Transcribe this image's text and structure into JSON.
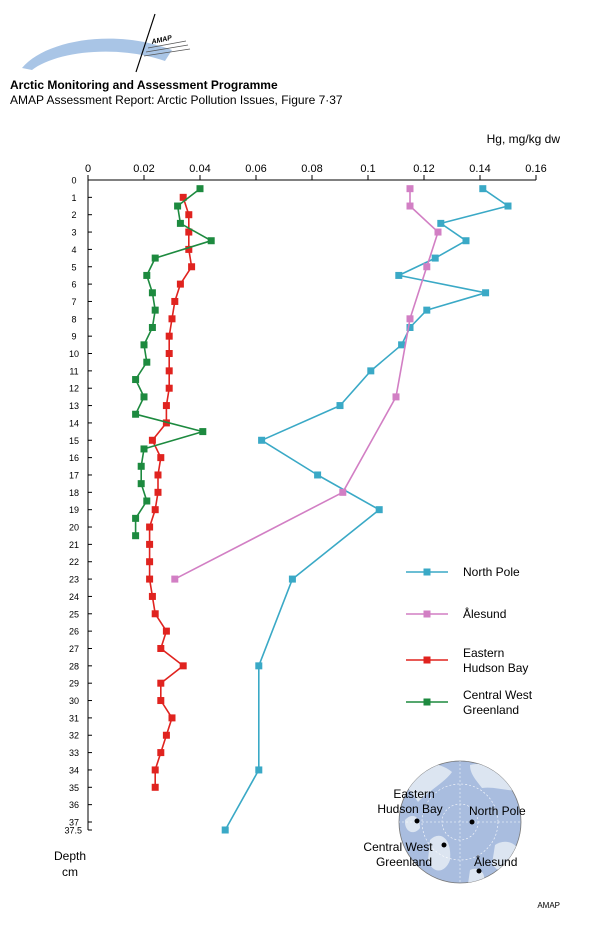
{
  "header": {
    "logo_text": "AMAP",
    "title": "Arctic Monitoring and Assessment Programme",
    "subtitle": "AMAP Assessment Report: Arctic Pollution Issues, Figure 7·37"
  },
  "footer": {
    "credit": "AMAP"
  },
  "colors": {
    "north_pole": "#3aa9c6",
    "alesund": "#d27fc4",
    "hudson_bay": "#e0231f",
    "greenland": "#1d8a3f",
    "map_water": "#a9bddf",
    "map_land": "#dce5f1"
  },
  "inset_map": {
    "labels": [
      "Eastern Hudson Bay",
      "North Pole",
      "Central West Greenland",
      "Ålesund"
    ]
  },
  "chart_data": {
    "type": "line",
    "title": "",
    "xlabel": "Hg, mg/kg dw",
    "ylabel": "Depth cm",
    "xlim": [
      0,
      0.16
    ],
    "ylim": [
      37.5,
      0
    ],
    "x_ticks": [
      "0",
      "0.02",
      "0.04",
      "0.06",
      "0.08",
      "0.1",
      "0.12",
      "0.14",
      "0.16"
    ],
    "y_ticks": [
      "0",
      "1",
      "2",
      "3",
      "4",
      "5",
      "6",
      "7",
      "8",
      "9",
      "10",
      "11",
      "12",
      "13",
      "14",
      "15",
      "16",
      "17",
      "18",
      "19",
      "20",
      "21",
      "22",
      "23",
      "24",
      "25",
      "26",
      "27",
      "28",
      "29",
      "30",
      "31",
      "32",
      "33",
      "34",
      "35",
      "36",
      "37",
      "37.5"
    ],
    "x_axis_position": "top",
    "y_axis_direction": "depth increasing downward",
    "grid": false,
    "legend_position": "right",
    "series": [
      {
        "name": "North Pole",
        "color": "#3aa9c6",
        "points": [
          [
            0.141,
            0.5
          ],
          [
            0.15,
            1.5
          ],
          [
            0.126,
            2.5
          ],
          [
            0.135,
            3.5
          ],
          [
            0.124,
            4.5
          ],
          [
            0.111,
            5.5
          ],
          [
            0.142,
            6.5
          ],
          [
            0.121,
            7.5
          ],
          [
            0.115,
            8.5
          ],
          [
            0.112,
            9.5
          ],
          [
            0.101,
            11
          ],
          [
            0.09,
            13
          ],
          [
            0.062,
            15
          ],
          [
            0.082,
            17
          ],
          [
            0.104,
            19
          ],
          [
            0.073,
            23
          ],
          [
            0.061,
            28
          ],
          [
            0.061,
            34
          ],
          [
            0.049,
            37.5
          ]
        ]
      },
      {
        "name": "Ålesund",
        "color": "#d27fc4",
        "points": [
          [
            0.115,
            0.5
          ],
          [
            0.115,
            1.5
          ],
          [
            0.125,
            3
          ],
          [
            0.121,
            5
          ],
          [
            0.115,
            8
          ],
          [
            0.11,
            12.5
          ],
          [
            0.091,
            18
          ],
          [
            0.031,
            23
          ]
        ]
      },
      {
        "name": "Eastern\nHudson Bay",
        "color": "#e0231f",
        "points": [
          [
            0.034,
            1
          ],
          [
            0.036,
            2
          ],
          [
            0.036,
            3
          ],
          [
            0.036,
            4
          ],
          [
            0.037,
            5
          ],
          [
            0.033,
            6
          ],
          [
            0.031,
            7
          ],
          [
            0.03,
            8
          ],
          [
            0.029,
            9
          ],
          [
            0.029,
            10
          ],
          [
            0.029,
            11
          ],
          [
            0.029,
            12
          ],
          [
            0.028,
            13
          ],
          [
            0.028,
            14
          ],
          [
            0.023,
            15
          ],
          [
            0.026,
            16
          ],
          [
            0.025,
            17
          ],
          [
            0.025,
            18
          ],
          [
            0.024,
            19
          ],
          [
            0.022,
            20
          ],
          [
            0.022,
            21
          ],
          [
            0.022,
            22
          ],
          [
            0.022,
            23
          ],
          [
            0.023,
            24
          ],
          [
            0.024,
            25
          ],
          [
            0.028,
            26
          ],
          [
            0.026,
            27
          ],
          [
            0.034,
            28
          ],
          [
            0.026,
            29
          ],
          [
            0.026,
            30
          ],
          [
            0.03,
            31
          ],
          [
            0.028,
            32
          ],
          [
            0.026,
            33
          ],
          [
            0.024,
            34
          ],
          [
            0.024,
            35
          ]
        ]
      },
      {
        "name": "Central West\nGreenland",
        "color": "#1d8a3f",
        "points": [
          [
            0.04,
            0.5
          ],
          [
            0.032,
            1.5
          ],
          [
            0.033,
            2.5
          ],
          [
            0.044,
            3.5
          ],
          [
            0.024,
            4.5
          ],
          [
            0.021,
            5.5
          ],
          [
            0.023,
            6.5
          ],
          [
            0.024,
            7.5
          ],
          [
            0.023,
            8.5
          ],
          [
            0.02,
            9.5
          ],
          [
            0.021,
            10.5
          ],
          [
            0.017,
            11.5
          ],
          [
            0.02,
            12.5
          ],
          [
            0.017,
            13.5
          ],
          [
            0.041,
            14.5
          ],
          [
            0.02,
            15.5
          ],
          [
            0.019,
            16.5
          ],
          [
            0.019,
            17.5
          ],
          [
            0.021,
            18.5
          ],
          [
            0.017,
            19.5
          ],
          [
            0.017,
            20.5
          ]
        ]
      }
    ]
  }
}
